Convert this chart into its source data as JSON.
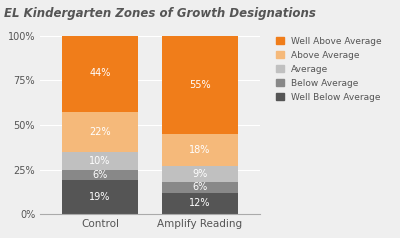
{
  "title": "EL Kindergarten Zones of Growth Designations",
  "categories": [
    "Control",
    "Amplify Reading"
  ],
  "segments": [
    {
      "label": "Well Below Average",
      "color": "#555555",
      "values": [
        19,
        12
      ]
    },
    {
      "label": "Below Average",
      "color": "#888888",
      "values": [
        6,
        6
      ]
    },
    {
      "label": "Average",
      "color": "#c0c0c0",
      "values": [
        10,
        9
      ]
    },
    {
      "label": "Above Average",
      "color": "#f5b97a",
      "values": [
        22,
        18
      ]
    },
    {
      "label": "Well Above Average",
      "color": "#f07d1a",
      "values": [
        44,
        55
      ]
    }
  ],
  "bar_width": 0.38,
  "ylim": [
    0,
    100
  ],
  "yticks": [
    0,
    25,
    50,
    75,
    100
  ],
  "yticklabels": [
    "0%",
    "25%",
    "50%",
    "75%",
    "100%"
  ],
  "title_fontsize": 8.5,
  "label_fontsize": 7,
  "legend_fontsize": 6.5,
  "background_color": "#efefef",
  "text_color": "#555555",
  "bar_positions": [
    0.25,
    0.75
  ]
}
